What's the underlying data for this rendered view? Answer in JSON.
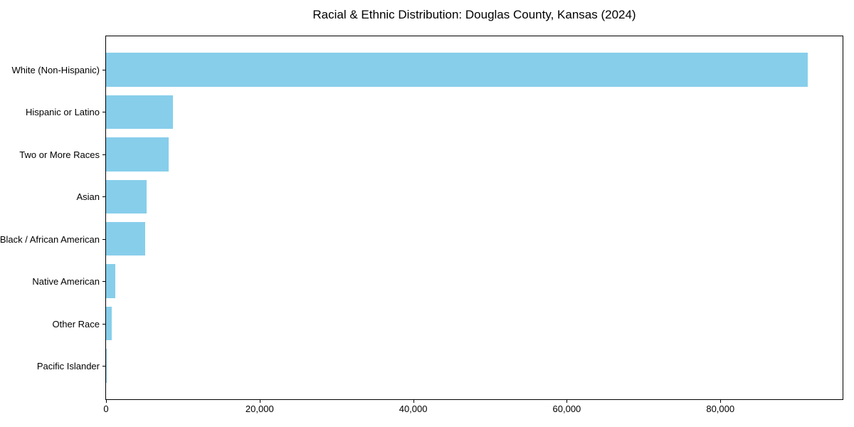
{
  "chart_data": {
    "type": "bar",
    "orientation": "horizontal",
    "title": "Racial & Ethnic Distribution: Douglas County, Kansas (2024)",
    "categories": [
      "White (Non-Hispanic)",
      "Hispanic or Latino",
      "Two or More Races",
      "Asian",
      "Black / African American",
      "Native American",
      "Other Race",
      "Pacific Islander"
    ],
    "values": [
      91350,
      8720,
      8200,
      5300,
      5120,
      1230,
      710,
      80
    ],
    "xlabel": "",
    "ylabel": "",
    "xlim": [
      0,
      95920
    ],
    "xticks": [
      0,
      20000,
      40000,
      60000,
      80000
    ],
    "xtick_labels": [
      "0",
      "20,000",
      "40,000",
      "60,000",
      "80,000"
    ],
    "bar_color": "#87CEEB",
    "bar_height_frac": 0.8,
    "y_axis_pad": 0.79,
    "grid": false,
    "legend": null,
    "frame_color": "#000000"
  }
}
